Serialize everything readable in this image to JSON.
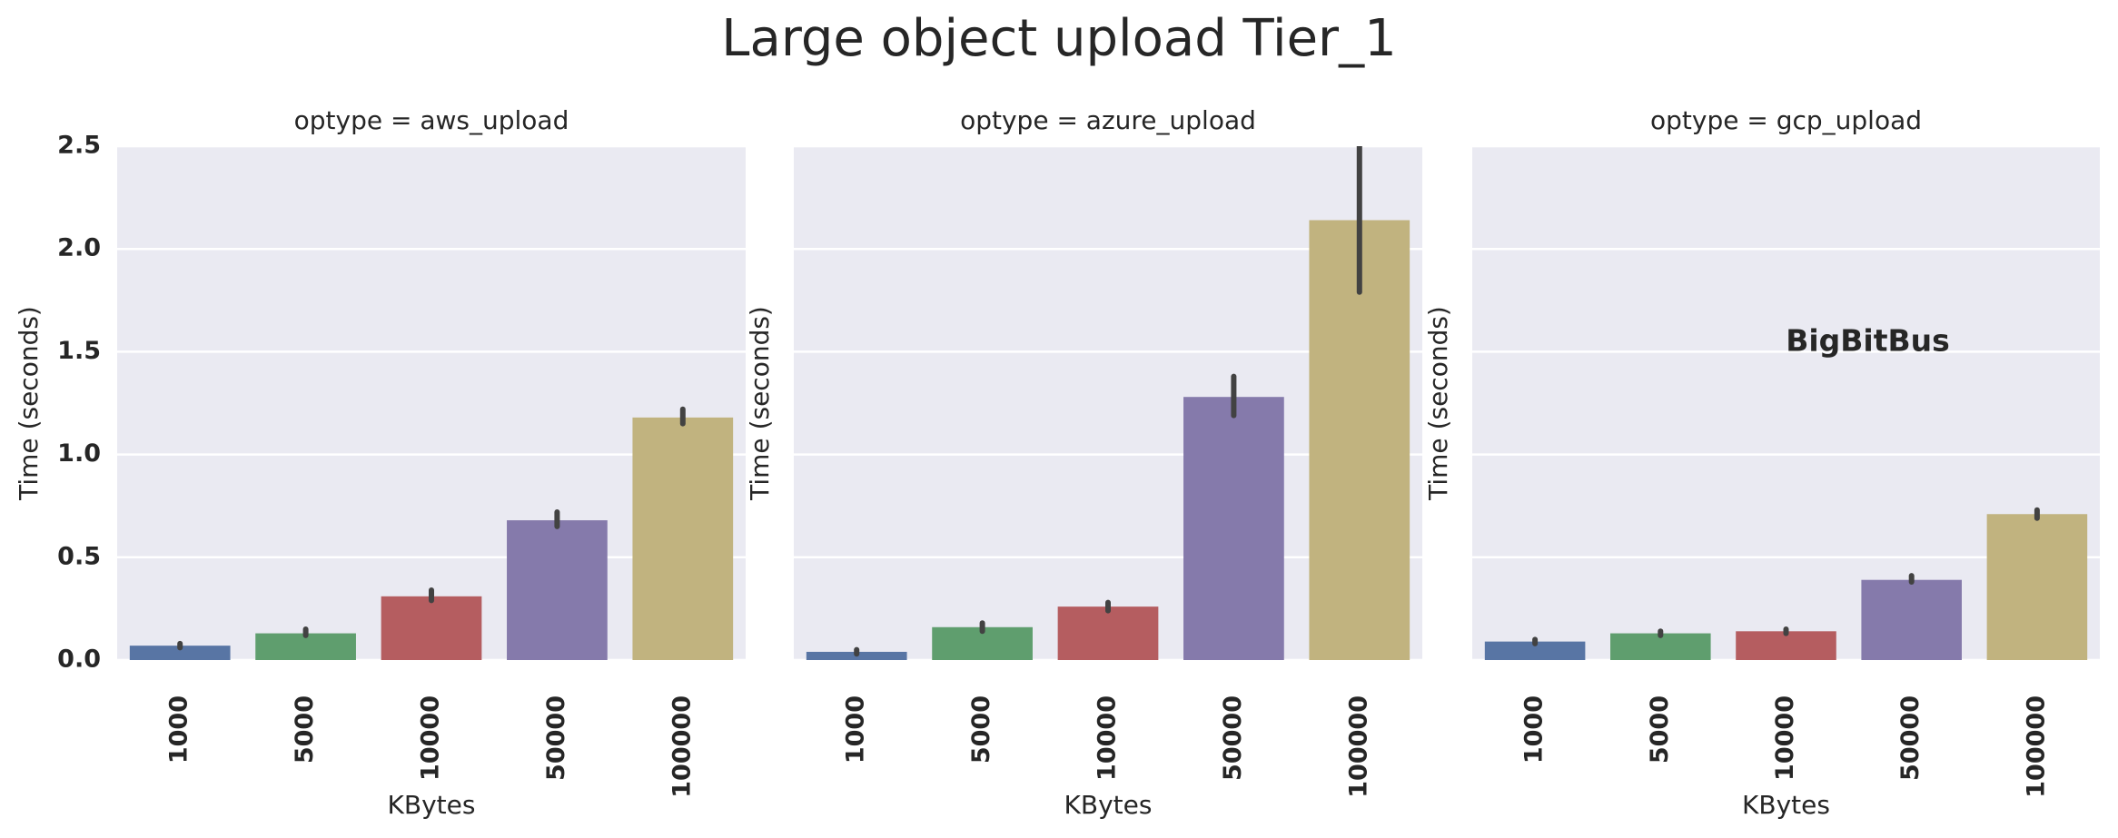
{
  "title": "Large object upload Tier_1",
  "chart_data": [
    {
      "type": "bar",
      "title": "optype = aws_upload",
      "x_label": "KBytes",
      "y_label": "Time (seconds)",
      "categories": [
        "1000",
        "5000",
        "10000",
        "50000",
        "100000"
      ],
      "colors": [
        "#5875a4",
        "#5f9e6e",
        "#b55d60",
        "#857aab",
        "#c1b37f"
      ],
      "values": [
        0.07,
        0.13,
        0.31,
        0.68,
        1.18
      ],
      "ci": [
        [
          0.06,
          0.08
        ],
        [
          0.12,
          0.15
        ],
        [
          0.29,
          0.34
        ],
        [
          0.65,
          0.72
        ],
        [
          1.15,
          1.22
        ]
      ],
      "ylim": [
        0,
        2.5
      ],
      "yticks": [
        {
          "value": 0,
          "label": "0.0"
        },
        0.5,
        {
          "value": 1,
          "label": "1.0"
        },
        1.5,
        {
          "value": 2,
          "label": "2.0"
        },
        2.5
      ],
      "ytick_labels": true,
      "grid": true
    },
    {
      "type": "bar",
      "title": "optype = azure_upload",
      "x_label": "KBytes",
      "y_label": "Time (seconds)",
      "categories": [
        "1000",
        "5000",
        "10000",
        "50000",
        "100000"
      ],
      "colors": [
        "#5875a4",
        "#5f9e6e",
        "#b55d60",
        "#857aab",
        "#c1b37f"
      ],
      "values": [
        0.04,
        0.16,
        0.26,
        1.28,
        2.14
      ],
      "ci": [
        [
          0.03,
          0.05
        ],
        [
          0.14,
          0.18
        ],
        [
          0.24,
          0.28
        ],
        [
          1.19,
          1.38
        ],
        [
          1.79,
          2.6
        ]
      ],
      "ylim": [
        0,
        2.5
      ],
      "yticks": [
        {
          "value": 0,
          "label": "0.0"
        },
        0.5,
        {
          "value": 1,
          "label": "1.0"
        },
        1.5,
        {
          "value": 2,
          "label": "2.0"
        },
        2.5
      ],
      "ytick_labels": false,
      "grid": true
    },
    {
      "type": "bar",
      "title": "optype = gcp_upload",
      "x_label": "KBytes",
      "y_label": "Time (seconds)",
      "categories": [
        "1000",
        "5000",
        "10000",
        "50000",
        "100000"
      ],
      "colors": [
        "#5875a4",
        "#5f9e6e",
        "#b55d60",
        "#857aab",
        "#c1b37f"
      ],
      "values": [
        0.09,
        0.13,
        0.14,
        0.39,
        0.71
      ],
      "ci": [
        [
          0.08,
          0.1
        ],
        [
          0.12,
          0.14
        ],
        [
          0.13,
          0.15
        ],
        [
          0.38,
          0.41
        ],
        [
          0.69,
          0.73
        ]
      ],
      "ylim": [
        0,
        2.5
      ],
      "yticks": [
        {
          "value": 0,
          "label": "0.0"
        },
        0.5,
        {
          "value": 1,
          "label": "1.0"
        },
        1.5,
        {
          "value": 2,
          "label": "2.0"
        },
        2.5
      ],
      "ytick_labels": false,
      "grid": true,
      "annotations": [
        "BigBitBus"
      ]
    }
  ]
}
